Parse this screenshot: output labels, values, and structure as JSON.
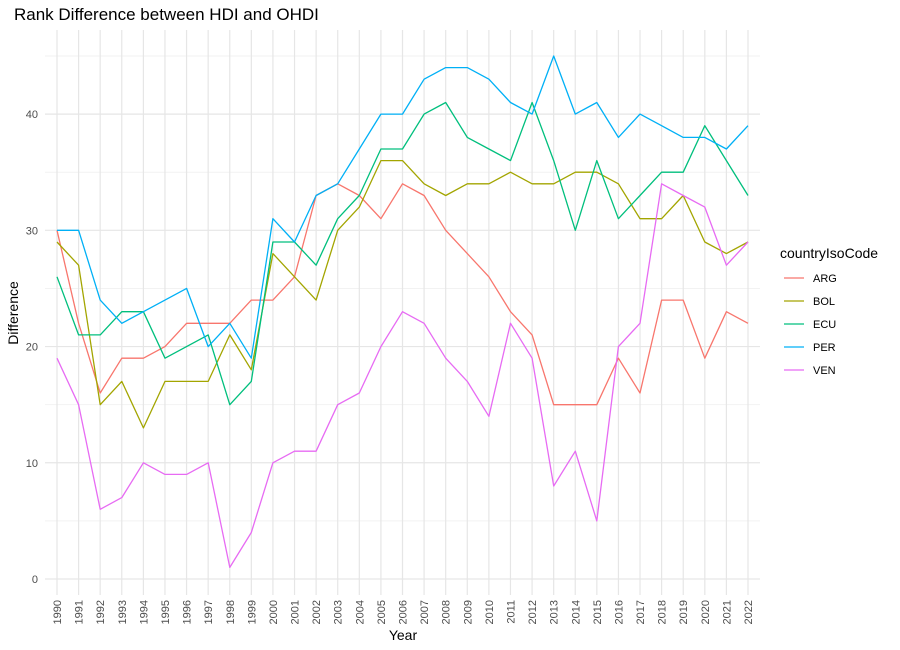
{
  "chart_data": {
    "type": "line",
    "title": "Rank Difference between HDI and OHDI",
    "xlabel": "Year",
    "ylabel": "Difference",
    "x": [
      1990,
      1991,
      1992,
      1993,
      1994,
      1995,
      1996,
      1997,
      1998,
      1999,
      2000,
      2001,
      2002,
      2003,
      2004,
      2005,
      2006,
      2007,
      2008,
      2009,
      2010,
      2011,
      2012,
      2013,
      2014,
      2015,
      2016,
      2017,
      2018,
      2019,
      2020,
      2021,
      2022
    ],
    "xlim": [
      1990,
      2022
    ],
    "ylim": [
      0,
      45
    ],
    "yticks": [
      0,
      10,
      20,
      30,
      40
    ],
    "grid": true,
    "legend": {
      "title": "countryIsoCode",
      "position": "right"
    },
    "series": [
      {
        "name": "ARG",
        "color": "#F8766D",
        "values": [
          30,
          22,
          16,
          19,
          19,
          20,
          22,
          22,
          22,
          24,
          24,
          26,
          33,
          34,
          33,
          31,
          34,
          33,
          30,
          28,
          26,
          23,
          21,
          15,
          15,
          15,
          19,
          16,
          24,
          24,
          19,
          23,
          22
        ]
      },
      {
        "name": "BOL",
        "color": "#A3A500",
        "values": [
          29,
          27,
          15,
          17,
          13,
          17,
          17,
          17,
          21,
          18,
          28,
          26,
          24,
          30,
          32,
          36,
          36,
          34,
          33,
          34,
          34,
          35,
          34,
          34,
          35,
          35,
          34,
          31,
          31,
          33,
          29,
          28,
          29
        ]
      },
      {
        "name": "ECU",
        "color": "#00BF7D",
        "values": [
          26,
          21,
          21,
          23,
          23,
          19,
          20,
          21,
          15,
          17,
          29,
          29,
          27,
          31,
          33,
          37,
          37,
          40,
          41,
          38,
          37,
          36,
          41,
          36,
          30,
          36,
          31,
          33,
          35,
          35,
          39,
          36,
          33
        ]
      },
      {
        "name": "PER",
        "color": "#00B0F6",
        "values": [
          30,
          30,
          24,
          22,
          23,
          24,
          25,
          20,
          22,
          19,
          31,
          29,
          33,
          34,
          37,
          40,
          40,
          43,
          44,
          44,
          43,
          41,
          40,
          45,
          40,
          41,
          38,
          40,
          39,
          38,
          38,
          37,
          39
        ]
      },
      {
        "name": "VEN",
        "color": "#E76BF3",
        "values": [
          19,
          15,
          6,
          7,
          10,
          9,
          9,
          10,
          1,
          4,
          10,
          11,
          11,
          15,
          16,
          20,
          23,
          22,
          19,
          17,
          14,
          22,
          19,
          8,
          11,
          5,
          20,
          22,
          34,
          33,
          32,
          27,
          29
        ]
      }
    ]
  }
}
